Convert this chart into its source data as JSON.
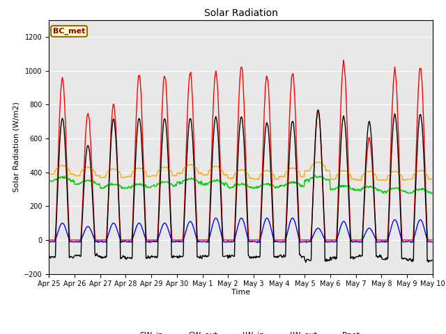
{
  "title": "Solar Radiation",
  "ylabel": "Solar Radiation (W/m2)",
  "xlabel": "Time",
  "ylim": [
    -200,
    1300
  ],
  "yticks": [
    -200,
    0,
    200,
    400,
    600,
    800,
    1000,
    1200
  ],
  "xtick_labels": [
    "Apr 25",
    "Apr 26",
    "Apr 27",
    "Apr 28",
    "Apr 29",
    "Apr 30",
    "May 1",
    "May 2",
    "May 3",
    "May 4",
    "May 5",
    "May 6",
    "May 7",
    "May 8",
    "May 9",
    "May 10"
  ],
  "colors": {
    "SW_in": "#ff0000",
    "SW_out": "#0000ff",
    "LW_in": "#00cc00",
    "LW_out": "#ffa500",
    "Rnet": "#000000"
  },
  "annotation_text": "BC_met",
  "annotation_bg": "#ffffcc",
  "annotation_border": "#996600",
  "background_color": "#e8e8e8",
  "n_days": 15,
  "time_step": 0.5,
  "SW_in_peaks": [
    960,
    750,
    800,
    975,
    975,
    990,
    1000,
    1030,
    975,
    990,
    760,
    1050,
    600,
    1000,
    1020
  ],
  "SW_out_peaks": [
    100,
    80,
    100,
    100,
    100,
    110,
    130,
    130,
    130,
    130,
    70,
    110,
    70,
    120,
    120
  ],
  "LW_in_base": [
    350,
    330,
    310,
    310,
    320,
    340,
    330,
    310,
    310,
    320,
    355,
    300,
    295,
    285,
    280
  ],
  "LW_out_base": [
    390,
    380,
    370,
    375,
    380,
    395,
    385,
    365,
    360,
    375,
    410,
    360,
    355,
    355,
    360
  ],
  "Rnet_peaks": [
    720,
    560,
    715,
    720,
    720,
    720,
    730,
    730,
    695,
    705,
    770,
    730,
    700,
    740,
    745
  ],
  "Rnet_night": [
    -100,
    -90,
    -100,
    -105,
    -100,
    -100,
    -95,
    -100,
    -100,
    -95,
    -120,
    -105,
    -95,
    -110,
    -120
  ]
}
